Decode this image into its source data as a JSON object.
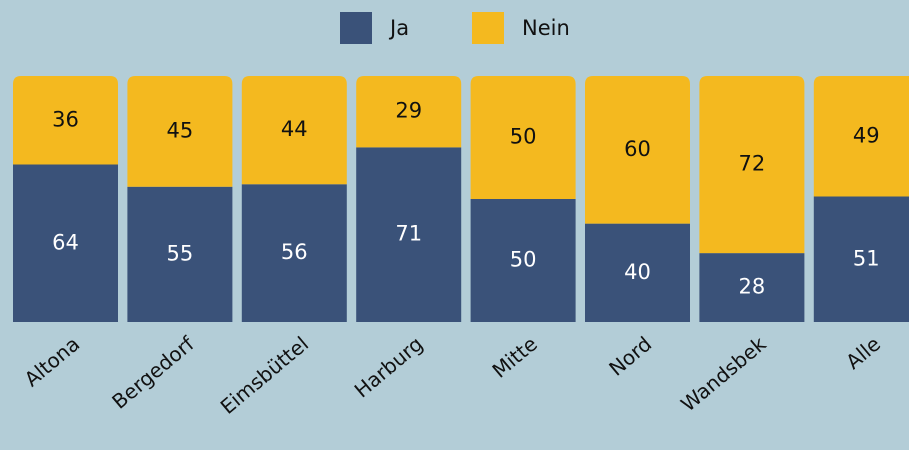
{
  "chart_data": {
    "type": "bar",
    "stacked": true,
    "categories": [
      "Altona",
      "Bergedorf",
      "Eimsbüttel",
      "Harburg",
      "Mitte",
      "Nord",
      "Wandsbek",
      "Alle"
    ],
    "series": [
      {
        "name": "Ja",
        "color": "#3a5279",
        "values": [
          64,
          55,
          56,
          71,
          50,
          40,
          28,
          51
        ]
      },
      {
        "name": "Nein",
        "color": "#f4b91f",
        "values": [
          36,
          45,
          44,
          29,
          50,
          60,
          72,
          49
        ]
      }
    ],
    "ylim": [
      0,
      100
    ],
    "legend": "top"
  }
}
